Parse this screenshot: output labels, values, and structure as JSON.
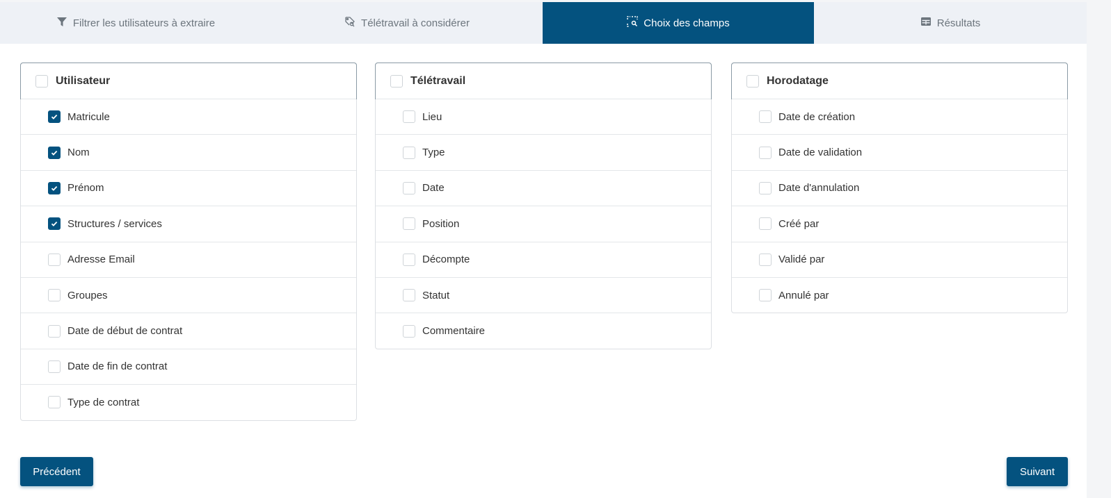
{
  "colors": {
    "primary": "#04527f",
    "tab_bg": "#eef1f6"
  },
  "tabs": [
    {
      "label": "Filtrer les utilisateurs à extraire",
      "icon": "filter-icon",
      "active": false
    },
    {
      "label": "Télétravail à considérer",
      "icon": "tag-search-icon",
      "active": false
    },
    {
      "label": "Choix des champs",
      "icon": "select-search-icon",
      "active": true
    },
    {
      "label": "Résultats",
      "icon": "table-icon",
      "active": false
    }
  ],
  "groups": [
    {
      "title": "Utilisateur",
      "checked": false,
      "fields": [
        {
          "label": "Matricule",
          "checked": true
        },
        {
          "label": "Nom",
          "checked": true
        },
        {
          "label": "Prénom",
          "checked": true
        },
        {
          "label": "Structures / services",
          "checked": true
        },
        {
          "label": "Adresse Email",
          "checked": false
        },
        {
          "label": "Groupes",
          "checked": false
        },
        {
          "label": "Date de début de contrat",
          "checked": false
        },
        {
          "label": "Date de fin de contrat",
          "checked": false
        },
        {
          "label": "Type de contrat",
          "checked": false
        }
      ]
    },
    {
      "title": "Télétravail",
      "checked": false,
      "fields": [
        {
          "label": "Lieu",
          "checked": false
        },
        {
          "label": "Type",
          "checked": false
        },
        {
          "label": "Date",
          "checked": false
        },
        {
          "label": "Position",
          "checked": false
        },
        {
          "label": "Décompte",
          "checked": false
        },
        {
          "label": "Statut",
          "checked": false
        },
        {
          "label": "Commentaire",
          "checked": false
        }
      ]
    },
    {
      "title": "Horodatage",
      "checked": false,
      "fields": [
        {
          "label": "Date de création",
          "checked": false
        },
        {
          "label": "Date de validation",
          "checked": false
        },
        {
          "label": "Date d'annulation",
          "checked": false
        },
        {
          "label": "Créé par",
          "checked": false
        },
        {
          "label": "Validé par",
          "checked": false
        },
        {
          "label": "Annulé par",
          "checked": false
        }
      ]
    }
  ],
  "buttons": {
    "previous": "Précédent",
    "next": "Suivant"
  }
}
